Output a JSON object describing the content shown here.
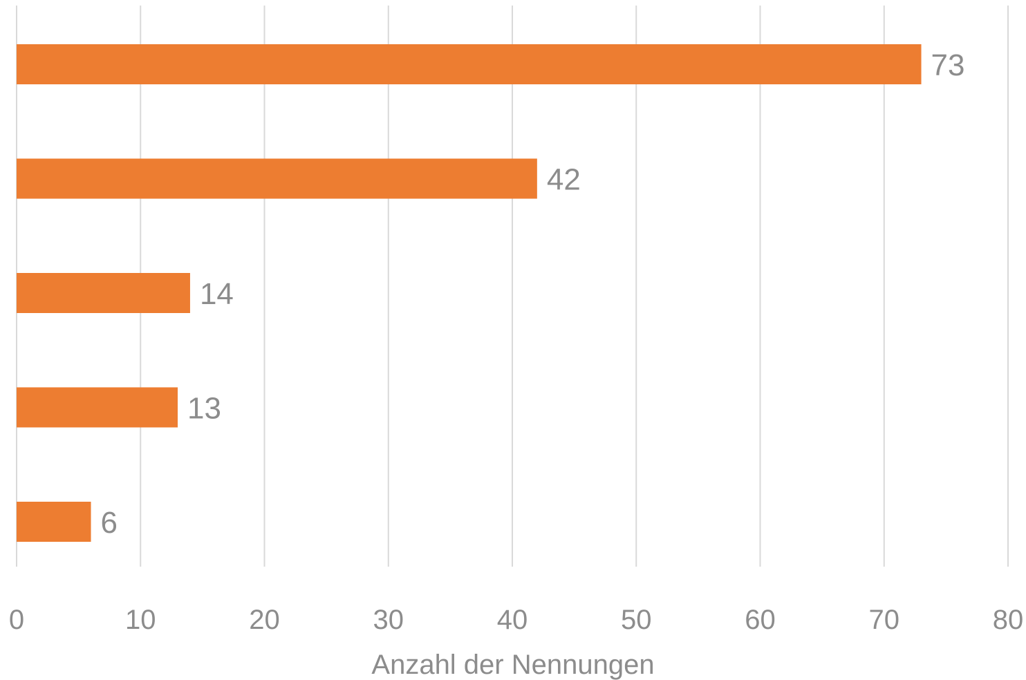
{
  "colors": {
    "bar": "#ed7d31",
    "text": "#8c8c8c",
    "grid": "#d9d9d9"
  },
  "chart_data": {
    "type": "bar",
    "orientation": "horizontal",
    "title": "",
    "xlabel": "Anzahl der Nennungen",
    "ylabel": "",
    "xlim": [
      0,
      80
    ],
    "xticks": [
      0,
      10,
      20,
      30,
      40,
      50,
      60,
      70,
      80
    ],
    "grid": true,
    "legend": "none",
    "series": [
      {
        "values": [
          73,
          42,
          14,
          13,
          6
        ]
      }
    ],
    "data_labels": [
      "73",
      "42",
      "14",
      "13",
      "6"
    ]
  }
}
